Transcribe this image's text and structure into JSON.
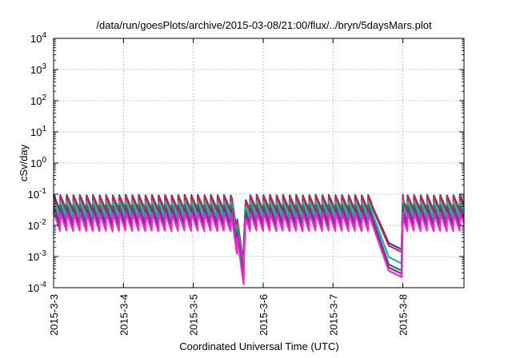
{
  "chart_data": {
    "type": "line",
    "title": "/data/run/goesPlots/archive/2015-03-08/21:00/flux/../bryn/5daysMars.plot",
    "xlabel": "Coordinated Universal Time (UTC)",
    "ylabel": "cSv/day",
    "yscale": "log",
    "ylim": [
      0.0001,
      10000
    ],
    "xlim_days": [
      0,
      5.875
    ],
    "grid": true,
    "x_ticks": [
      {
        "label": "2015-3-3",
        "day": 0
      },
      {
        "label": "2015-3-4",
        "day": 1
      },
      {
        "label": "2015-3-5",
        "day": 2
      },
      {
        "label": "2015-3-6",
        "day": 3
      },
      {
        "label": "2015-3-7",
        "day": 4
      },
      {
        "label": "2015-3-8",
        "day": 5
      }
    ],
    "y_ticks": [
      {
        "base": "10",
        "exp": "-4",
        "value": 0.0001
      },
      {
        "base": "10",
        "exp": "-3",
        "value": 0.001
      },
      {
        "base": "10",
        "exp": "-2",
        "value": 0.01
      },
      {
        "base": "10",
        "exp": "-1",
        "value": 0.1
      },
      {
        "base": "10",
        "exp": "0",
        "value": 1
      },
      {
        "base": "10",
        "exp": "1",
        "value": 10
      },
      {
        "base": "10",
        "exp": "2",
        "value": 100
      },
      {
        "base": "10",
        "exp": "3",
        "value": 1000
      },
      {
        "base": "10",
        "exp": "4",
        "value": 10000
      }
    ],
    "orbit_period_days": 0.0938,
    "series": [
      {
        "color": "#1f3fd6",
        "peak": 0.095,
        "trough": 0.03,
        "dip_min": 0.0017
      },
      {
        "color": "#e0202a",
        "peak": 0.085,
        "trough": 0.026,
        "dip_min": 0.0014
      },
      {
        "color": "#19b5b5",
        "peak": 0.06,
        "trough": 0.018,
        "dip_min": 0.0006
      },
      {
        "color": "#14884a",
        "peak": 0.045,
        "trough": 0.012,
        "dip_min": 0.00035
      },
      {
        "color": "#7a2aa8",
        "peak": 0.035,
        "trough": 0.009,
        "dip_min": 0.00028
      },
      {
        "color": "#ff1fd2",
        "peak": 0.026,
        "trough": 0.0065,
        "dip_min": 0.00022
      }
    ],
    "events": [
      {
        "start": 2.55,
        "end": 2.75,
        "min_factor": 0.02
      },
      {
        "start": 4.55,
        "end": 5.0,
        "dip_to_series_min": true
      }
    ]
  }
}
